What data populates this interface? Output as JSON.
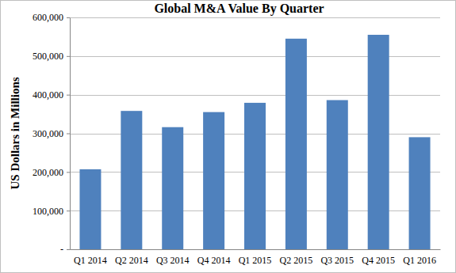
{
  "chart_data": {
    "type": "bar",
    "title": "Global M&A Value By Quarter",
    "y_label": "US Dollars in Millions",
    "categories": [
      "Q1 2014",
      "Q2 2014",
      "Q3 2014",
      "Q4 2014",
      "Q1 2015",
      "Q2 2015",
      "Q3 2015",
      "Q4 2015",
      "Q1 2016"
    ],
    "values": [
      207000,
      358000,
      316000,
      355000,
      379000,
      545000,
      386000,
      555000,
      290000
    ],
    "color": "#4f81bd",
    "ylim": [
      0,
      600000
    ],
    "yticks": [
      {
        "value": 0,
        "label": "-"
      },
      {
        "value": 100000,
        "label": "100,000"
      },
      {
        "value": 200000,
        "label": "200,000"
      },
      {
        "value": 300000,
        "label": "300,000"
      },
      {
        "value": 400000,
        "label": "400,000"
      },
      {
        "value": 500000,
        "label": "500,000"
      },
      {
        "value": 600000,
        "label": "600,000"
      }
    ],
    "grid": true
  }
}
